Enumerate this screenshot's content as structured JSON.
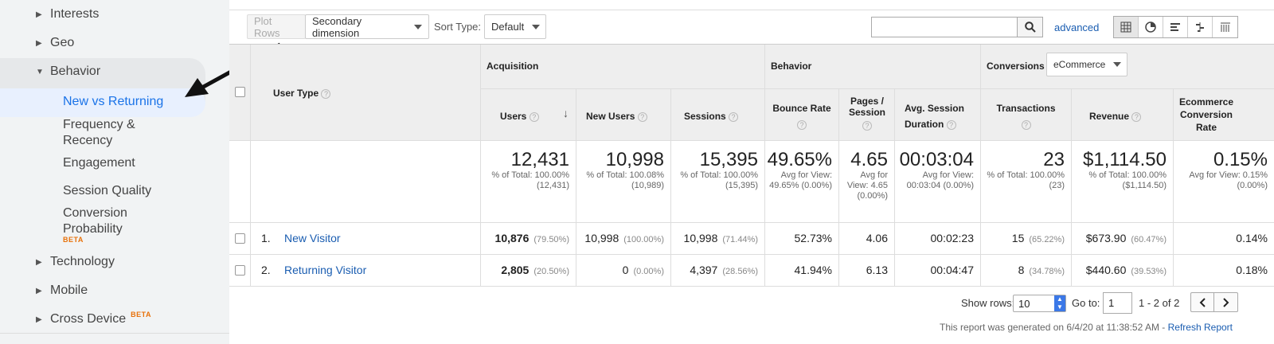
{
  "sidebar": {
    "items": [
      {
        "label": "Interests",
        "caret": "▶"
      },
      {
        "label": "Geo",
        "caret": "▶"
      },
      {
        "label": "Behavior",
        "caret": "▼"
      },
      {
        "label": "Technology",
        "caret": "▶"
      },
      {
        "label": "Mobile",
        "caret": "▶"
      },
      {
        "label": "Cross Device",
        "caret": "▶"
      }
    ],
    "sub_items": [
      {
        "label": "New vs Returning"
      },
      {
        "label": "Frequency & Recency"
      },
      {
        "label": "Engagement"
      },
      {
        "label": "Session Quality"
      },
      {
        "label": "Conversion Probability"
      }
    ],
    "beta": "BETA",
    "selected_color": "#1a73e8"
  },
  "toolbar": {
    "plot_rows": "Plot Rows",
    "secondary_dimension": "Secondary dimension",
    "sort_type_label": "Sort Type:",
    "sort_type_value": "Default",
    "search_value": "",
    "advanced": "advanced"
  },
  "table": {
    "user_type_header": "User Type",
    "groups": {
      "acquisition": "Acquisition",
      "behavior": "Behavior",
      "conversions": "Conversions",
      "ecommerce": "eCommerce"
    },
    "columns": [
      "Users",
      "New Users",
      "Sessions",
      "Bounce Rate",
      "Pages / Session",
      "Avg. Session Duration",
      "Transactions",
      "Revenue",
      "Ecommerce Conversion Rate"
    ],
    "totals": [
      {
        "value": "12,431",
        "sub": "% of Total: 100.00% (12,431)"
      },
      {
        "value": "10,998",
        "sub": "% of Total: 100.08% (10,989)"
      },
      {
        "value": "15,395",
        "sub": "% of Total: 100.00% (15,395)"
      },
      {
        "value": "49.65%",
        "sub": "Avg for View: 49.65% (0.00%)"
      },
      {
        "value": "4.65",
        "sub": "Avg for View: 4.65 (0.00%)"
      },
      {
        "value": "00:03:04",
        "sub": "Avg for View: 00:03:04 (0.00%)"
      },
      {
        "value": "23",
        "sub": "% of Total: 100.00% (23)"
      },
      {
        "value": "$1,114.50",
        "sub": "% of Total: 100.00% ($1,114.50)"
      },
      {
        "value": "0.15%",
        "sub": "Avg for View: 0.15% (0.00%)"
      }
    ],
    "rows": [
      {
        "num": "1.",
        "name": "New Visitor",
        "users": "10,876",
        "users_pct": "(79.50%)",
        "new_users": "10,998",
        "new_users_pct": "(100.00%)",
        "sessions": "10,998",
        "sessions_pct": "(71.44%)",
        "bounce": "52.73%",
        "pages": "4.06",
        "duration": "00:02:23",
        "trans": "15",
        "trans_pct": "(65.22%)",
        "revenue": "$673.90",
        "revenue_pct": "(60.47%)",
        "conv": "0.14%"
      },
      {
        "num": "2.",
        "name": "Returning Visitor",
        "users": "2,805",
        "users_pct": "(20.50%)",
        "new_users": "0",
        "new_users_pct": "(0.00%)",
        "sessions": "4,397",
        "sessions_pct": "(28.56%)",
        "bounce": "41.94%",
        "pages": "6.13",
        "duration": "00:04:47",
        "trans": "8",
        "trans_pct": "(34.78%)",
        "revenue": "$440.60",
        "revenue_pct": "(39.53%)",
        "conv": "0.18%"
      }
    ]
  },
  "pagination": {
    "show_rows_label": "Show rows:",
    "show_rows_value": "10",
    "goto_label": "Go to:",
    "goto_value": "1",
    "range": "1 - 2 of 2"
  },
  "footer": {
    "generated": "This report was generated on 6/4/20 at 11:38:52 AM - ",
    "refresh": "Refresh Report"
  }
}
